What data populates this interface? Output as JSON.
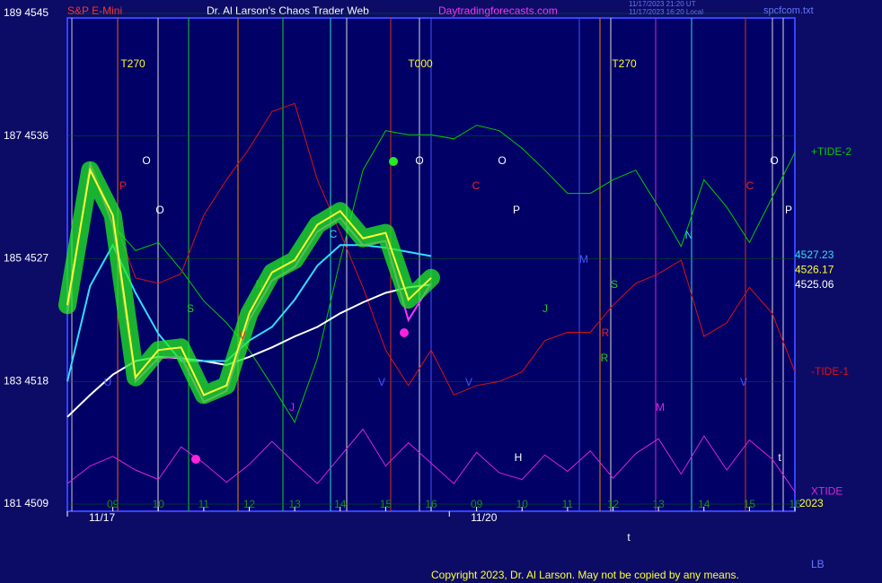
{
  "header": {
    "symbol": "S&P E-Mini",
    "title": "Dr. Al Larson's Chaos Trader Web",
    "site": "Daytradingforecasts.com",
    "timestamp_ut": "11/17/2023 21:20 UT",
    "timestamp_local": "11/17/2023 16:20 Local",
    "file": "spcfcom.txt"
  },
  "footer": {
    "copyright": "Copyright 2023, Dr. Al Larson. May not be copied by any means.",
    "corner": "LB",
    "year": "2023"
  },
  "annotations": [
    "T270",
    "T000",
    "T270",
    "O",
    "O",
    "O",
    "O",
    "O",
    "P",
    "P",
    "P",
    "C",
    "C",
    "C",
    "N",
    "N",
    "S",
    "S",
    "J",
    "J",
    "M",
    "M",
    "U",
    "V",
    "V",
    "V",
    "V",
    "R",
    "R",
    "H",
    "t",
    "t"
  ],
  "chart_data": {
    "type": "line",
    "x": [
      0,
      0.5,
      1,
      1.5,
      2,
      2.5,
      3,
      3.5,
      4,
      4.5,
      5,
      5.5,
      6,
      6.5,
      7,
      7.5,
      8,
      8.5,
      9,
      9.5,
      10,
      10.5,
      11,
      11.5,
      12,
      12.5,
      13,
      13.5,
      14,
      14.5,
      15,
      15.5,
      16
    ],
    "xlim": [
      0,
      16
    ],
    "xticks": [
      {
        "value": 1,
        "label": "09"
      },
      {
        "value": 2,
        "label": "10"
      },
      {
        "value": 3,
        "label": "11"
      },
      {
        "value": 4,
        "label": "12"
      },
      {
        "value": 5,
        "label": "13"
      },
      {
        "value": 6,
        "label": "14"
      },
      {
        "value": 7,
        "label": "15"
      },
      {
        "value": 8,
        "label": "16"
      },
      {
        "value": 9,
        "label": "09"
      },
      {
        "value": 10,
        "label": "10"
      },
      {
        "value": 11,
        "label": "11"
      },
      {
        "value": 12,
        "label": "12"
      },
      {
        "value": 13,
        "label": "13"
      },
      {
        "value": 14,
        "label": "14"
      },
      {
        "value": 15,
        "label": "15"
      },
      {
        "value": 16,
        "label": "16"
      }
    ],
    "date_ticks": [
      {
        "value": 0,
        "label": "11/17"
      },
      {
        "value": 8.4,
        "label": "11/20"
      }
    ],
    "ylim": [
      4509,
      4545
    ],
    "yticks": [
      {
        "value": 4509,
        "label": "181 4509"
      },
      {
        "value": 4518,
        "label": "183 4518"
      },
      {
        "value": 4527,
        "label": "185 4527"
      },
      {
        "value": 4536,
        "label": "187 4536"
      },
      {
        "value": 4545,
        "label": "189 4545"
      }
    ],
    "series": [
      {
        "color": "#00cc00",
        "values": [
          null,
          null,
          4529.5,
          4527.6,
          4528.2,
          4526.2,
          4523.9,
          4522.3,
          4520.3,
          4517.7,
          4515,
          4519.7,
          4526.9,
          4533.5,
          4536.4,
          4536.1,
          4536.1,
          4535.8,
          4536.8,
          4536.4,
          4535.1,
          4533.5,
          4531.8,
          4531.8,
          4532.8,
          4533.5,
          4530.8,
          4527.9,
          4532.8,
          4530.8,
          4528.2,
          4531.5,
          4534.8
        ],
        "name": "+TIDE-2"
      },
      {
        "color": "#dd1111",
        "values": [
          null,
          4534.1,
          4530.2,
          4525.6,
          4525.2,
          4525.9,
          4530.2,
          4532.8,
          4535.1,
          4537.8,
          4538.4,
          4532.8,
          4528.9,
          4524.9,
          4520.3,
          4517.7,
          4520.3,
          4517,
          4517.7,
          4518,
          4518.7,
          4521,
          4521.6,
          4521.6,
          4523.6,
          4525.2,
          4525.9,
          4526.9,
          4521.3,
          4522.3,
          4524.9,
          4523,
          4518.7
        ],
        "name": "-TIDE-1"
      },
      {
        "color": "#dd22dd",
        "values": [
          4510.5,
          4511.8,
          4512.5,
          4511.5,
          4510.8,
          4513.2,
          4512,
          4510.6,
          4511.9,
          4513.6,
          4512,
          4510.5,
          4512.5,
          4514.5,
          4511.8,
          4513.5,
          4512,
          4510.5,
          4512.8,
          4511.3,
          4510.8,
          4512.6,
          4511.4,
          4512.9,
          4510.9,
          4512.7,
          4513.8,
          4511.2,
          4514,
          4511.5,
          4513.7,
          4512.3,
          4509.9
        ],
        "name": "XTIDE"
      },
      {
        "color": "#ffffff",
        "values": [
          4515.4,
          4517,
          4518.5,
          4519.5,
          4519.8,
          4519.7,
          4519.5,
          4519.2,
          4519.8,
          4520.5,
          4521.3,
          4522,
          4523,
          4523.8,
          4524.5,
          4524.9,
          4525.1,
          null,
          null,
          null,
          null,
          null,
          null,
          null,
          null,
          null,
          null,
          null,
          null,
          null,
          null,
          null,
          null
        ],
        "last_value": 4525.06
      },
      {
        "color": "#33ddff",
        "values": [
          4518,
          4525,
          4528,
          4524.5,
          4521.5,
          4519.5,
          4519.5,
          4519.5,
          4521,
          4522,
          4524,
          4526.5,
          4528,
          4528,
          4527.8,
          4527.5,
          4527.2,
          null,
          null,
          null,
          null,
          null,
          null,
          null,
          null,
          null,
          null,
          null,
          null,
          null,
          null,
          null,
          null
        ],
        "last_value": 4527.23
      },
      {
        "color": "#ff33ff",
        "values": [
          4523,
          4533.9,
          4529.5,
          4518,
          4519.7,
          4519.8,
          4516.5,
          4517.3,
          4522.5,
          4525.4,
          4526.4,
          4529,
          4530,
          4528,
          4528.3,
          4522.5,
          4525.2,
          null,
          null,
          null,
          null,
          null,
          null,
          null,
          null,
          null,
          null,
          null,
          null,
          null,
          null,
          null,
          null
        ]
      },
      {
        "color": "#ffff33",
        "values": [
          4523.6,
          4533.5,
          4530.2,
          4518.3,
          4520.3,
          4520.5,
          4517,
          4517.7,
          4523,
          4526,
          4526.9,
          4529.5,
          4530.5,
          4528.5,
          4528.9,
          4524,
          4525.6,
          null,
          null,
          null,
          null,
          null,
          null,
          null,
          null,
          null,
          null,
          null,
          null,
          null,
          null,
          null,
          null
        ],
        "last_value": 4526.17
      }
    ]
  }
}
